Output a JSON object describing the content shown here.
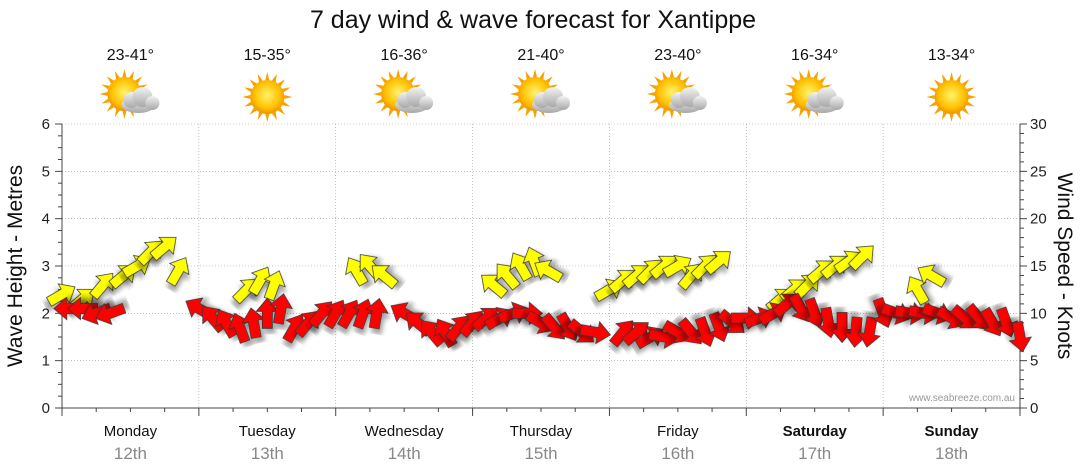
{
  "chart_data": {
    "type": "line",
    "title": "7 day wind & wave forecast for Xantippe",
    "ylabel_left": "Wave Height - Metres",
    "ylabel_right": "Wind Speed - Knots",
    "ylim_left": [
      0,
      6
    ],
    "ylim_right": [
      0,
      30
    ],
    "yticks_left": [
      "0",
      "1",
      "2",
      "3",
      "4",
      "5",
      "6"
    ],
    "yticks_right": [
      "0",
      "5",
      "10",
      "15",
      "20",
      "25",
      "30"
    ],
    "grid": true,
    "watermark": "www.seabreeze.com.au",
    "days": [
      {
        "name": "Monday",
        "date": "12th",
        "temp": "23-41°",
        "icon": "sun-cloud-icon",
        "bold": false
      },
      {
        "name": "Tuesday",
        "date": "13th",
        "temp": "15-35°",
        "icon": "sun-icon",
        "bold": false
      },
      {
        "name": "Wednesday",
        "date": "14th",
        "temp": "16-36°",
        "icon": "sun-cloud-icon",
        "bold": false
      },
      {
        "name": "Thursday",
        "date": "15th",
        "temp": "21-40°",
        "icon": "sun-cloud-icon",
        "bold": false
      },
      {
        "name": "Friday",
        "date": "16th",
        "temp": "23-40°",
        "icon": "sun-cloud-icon",
        "bold": false
      },
      {
        "name": "Saturday",
        "date": "17th",
        "temp": "16-34°",
        "icon": "sun-cloud-icon",
        "bold": true
      },
      {
        "name": "Sunday",
        "date": "18th",
        "temp": "13-34°",
        "icon": "sun-icon",
        "bold": true
      }
    ],
    "series": [
      {
        "name": "Wind Speed",
        "color": "#ffff00",
        "x": [
          0.0,
          0.15,
          0.3,
          0.45,
          0.55,
          0.65,
          0.75,
          0.85,
          1.35,
          1.45,
          1.55,
          2.15,
          2.25,
          2.35,
          3.15,
          3.25,
          3.35,
          3.45,
          3.55,
          4.0,
          4.1,
          4.2,
          4.3,
          4.4,
          4.5,
          4.6,
          4.7,
          4.8,
          5.25,
          5.35,
          5.45,
          5.55,
          5.65,
          5.75,
          5.85,
          6.25,
          6.35
        ],
        "values": [
          12.0,
          11.5,
          13.0,
          14.0,
          15.0,
          16.5,
          17.0,
          14.5,
          12.5,
          13.5,
          13.0,
          14.5,
          15.0,
          14.0,
          13.0,
          14.0,
          15.0,
          15.5,
          14.5,
          12.5,
          13.5,
          14.0,
          14.5,
          15.0,
          15.0,
          14.0,
          15.0,
          15.5,
          11.5,
          12.5,
          13.0,
          14.5,
          15.0,
          15.5,
          16.0,
          12.5,
          14.0
        ],
        "dir": [
          60,
          50,
          40,
          50,
          60,
          45,
          50,
          30,
          45,
          30,
          20,
          330,
          320,
          310,
          310,
          320,
          330,
          340,
          300,
          60,
          50,
          50,
          45,
          50,
          60,
          40,
          45,
          50,
          50,
          50,
          45,
          50,
          50,
          55,
          45,
          330,
          300
        ]
      },
      {
        "name": "Wave Height",
        "color": "#ff0000",
        "x": [
          0.05,
          0.15,
          0.25,
          0.35,
          1.0,
          1.1,
          1.2,
          1.3,
          1.4,
          1.5,
          1.6,
          1.7,
          1.8,
          1.9,
          2.0,
          2.1,
          2.2,
          2.3,
          2.5,
          2.6,
          2.7,
          2.8,
          2.9,
          3.0,
          3.1,
          3.2,
          3.3,
          3.4,
          3.5,
          3.6,
          3.7,
          3.8,
          3.9,
          4.1,
          4.2,
          4.3,
          4.4,
          4.5,
          4.6,
          4.7,
          4.8,
          4.9,
          5.0,
          5.1,
          5.2,
          5.3,
          5.4,
          5.5,
          5.6,
          5.7,
          5.8,
          5.9,
          6.0,
          6.1,
          6.2,
          6.3,
          6.4,
          6.5,
          6.6,
          6.7,
          6.8,
          6.9,
          7.0
        ],
        "values": [
          2.1,
          2.1,
          2.0,
          2.0,
          2.1,
          1.9,
          1.8,
          1.7,
          1.8,
          2.0,
          2.1,
          1.7,
          1.8,
          2.0,
          2.0,
          2.0,
          2.0,
          2.0,
          2.0,
          1.8,
          1.6,
          1.6,
          1.7,
          1.8,
          1.9,
          1.9,
          2.0,
          2.0,
          1.8,
          1.7,
          1.7,
          1.6,
          1.6,
          1.6,
          1.6,
          1.5,
          1.5,
          1.6,
          1.6,
          1.6,
          1.7,
          1.8,
          1.9,
          1.9,
          2.0,
          2.2,
          2.1,
          2.0,
          1.8,
          1.7,
          1.6,
          1.6,
          2.0,
          2.0,
          2.0,
          2.0,
          2.0,
          1.9,
          1.9,
          1.9,
          1.8,
          1.8,
          1.5
        ],
        "dir": [
          270,
          270,
          250,
          250,
          300,
          320,
          330,
          340,
          350,
          0,
          10,
          30,
          40,
          40,
          30,
          30,
          20,
          10,
          300,
          310,
          320,
          330,
          40,
          40,
          50,
          60,
          70,
          90,
          120,
          140,
          150,
          130,
          100,
          40,
          50,
          60,
          100,
          120,
          140,
          160,
          160,
          130,
          90,
          70,
          60,
          50,
          150,
          160,
          170,
          180,
          185,
          190,
          160,
          110,
          100,
          100,
          110,
          120,
          130,
          140,
          150,
          160,
          170
        ]
      }
    ]
  }
}
